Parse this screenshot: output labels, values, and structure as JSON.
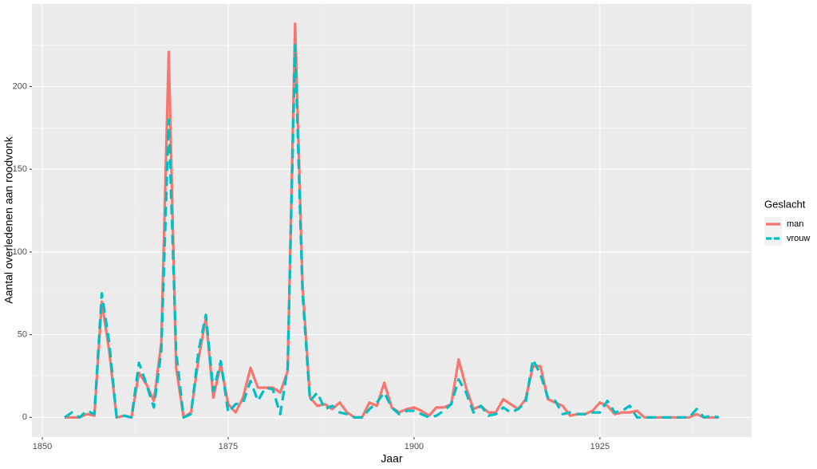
{
  "chart_data": {
    "type": "line",
    "x_label": "Jaar",
    "y_label": "Aantal overledenen aan roodvonk",
    "legend_title": "Geslacht",
    "legend": "right",
    "grid": true,
    "x": [
      1853,
      1854,
      1855,
      1856,
      1857,
      1858,
      1859,
      1860,
      1861,
      1862,
      1863,
      1864,
      1865,
      1866,
      1867,
      1868,
      1869,
      1870,
      1871,
      1872,
      1873,
      1874,
      1875,
      1876,
      1877,
      1878,
      1879,
      1880,
      1881,
      1882,
      1883,
      1884,
      1885,
      1886,
      1887,
      1888,
      1889,
      1890,
      1891,
      1892,
      1893,
      1894,
      1895,
      1896,
      1897,
      1898,
      1899,
      1900,
      1901,
      1902,
      1903,
      1904,
      1905,
      1906,
      1907,
      1908,
      1909,
      1910,
      1911,
      1912,
      1913,
      1914,
      1915,
      1916,
      1917,
      1918,
      1919,
      1920,
      1921,
      1922,
      1923,
      1924,
      1925,
      1926,
      1927,
      1928,
      1929,
      1930,
      1931,
      1932,
      1933,
      1934,
      1935,
      1936,
      1937,
      1938,
      1939,
      1940,
      1941
    ],
    "series": [
      {
        "name": "man",
        "color": "#F8766D",
        "dash": "solid",
        "values": [
          0,
          0,
          0,
          2,
          1,
          70,
          40,
          0,
          1,
          0,
          27,
          20,
          10,
          45,
          221,
          30,
          0,
          3,
          35,
          60,
          12,
          32,
          8,
          3,
          12,
          30,
          18,
          18,
          18,
          15,
          28,
          238,
          80,
          12,
          7,
          8,
          5,
          9,
          3,
          0,
          0,
          9,
          7,
          21,
          6,
          3,
          5,
          6,
          4,
          1,
          6,
          6,
          8,
          35,
          18,
          5,
          7,
          3,
          3,
          11,
          8,
          5,
          11,
          31,
          31,
          11,
          9,
          7,
          1,
          2,
          2,
          4,
          9,
          7,
          2,
          3,
          3,
          4,
          0,
          0,
          0,
          0,
          0,
          0,
          0,
          2,
          0,
          0,
          0
        ]
      },
      {
        "name": "vrouw",
        "color": "#00BFC4",
        "dash": "dashed",
        "values": [
          0,
          3,
          0,
          4,
          2,
          75,
          45,
          0,
          1,
          0,
          33,
          20,
          6,
          40,
          180,
          40,
          0,
          2,
          40,
          62,
          16,
          34,
          3,
          8,
          9,
          22,
          10,
          18,
          17,
          2,
          30,
          225,
          75,
          10,
          15,
          5,
          7,
          3,
          2,
          0,
          0,
          5,
          9,
          15,
          6,
          2,
          4,
          4,
          2,
          0,
          1,
          4,
          8,
          23,
          15,
          3,
          7,
          1,
          2,
          6,
          3,
          5,
          9,
          35,
          26,
          12,
          10,
          2,
          3,
          2,
          2,
          3,
          3,
          10,
          3,
          4,
          7,
          0,
          0,
          0,
          0,
          0,
          0,
          0,
          0,
          5,
          0,
          1,
          0
        ]
      }
    ],
    "xlim": [
      1848.6,
      1945.4
    ],
    "xticks": [
      1850,
      1875,
      1900,
      1925
    ],
    "ylim": [
      -11.9,
      249.9
    ],
    "yticks": [
      0,
      50,
      100,
      150,
      200
    ]
  }
}
